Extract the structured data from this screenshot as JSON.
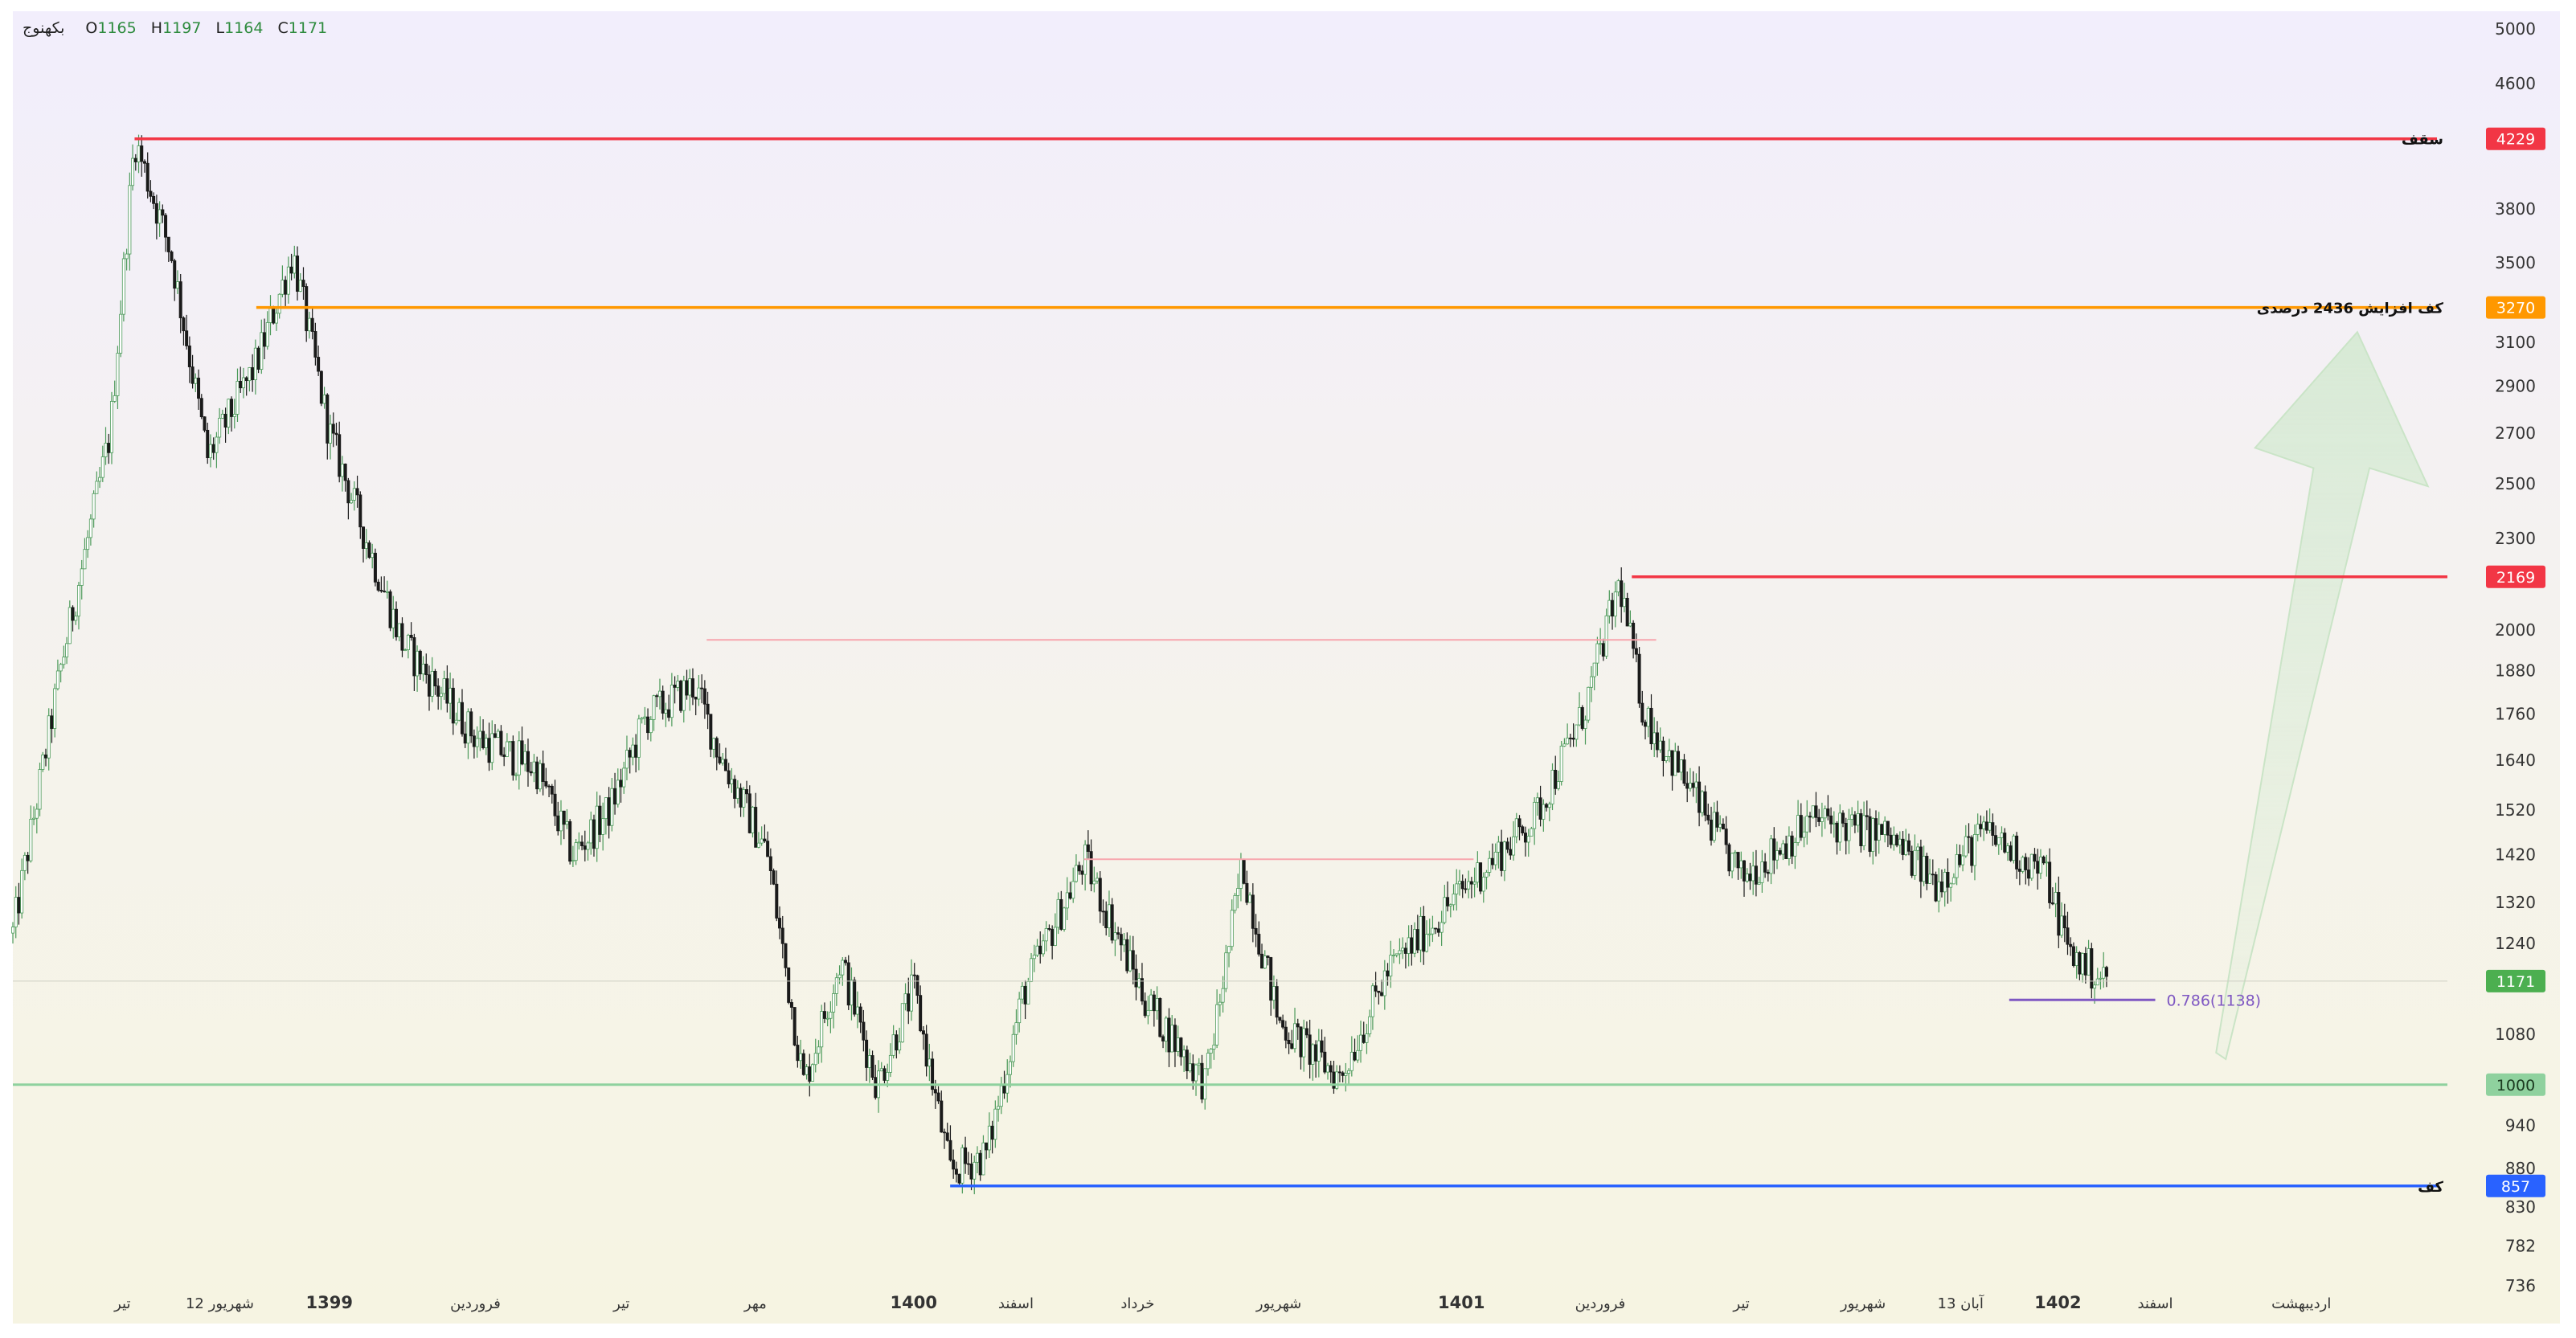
{
  "chart_data": {
    "type": "candlestick",
    "symbol": "بکهنوج",
    "ohlc_legend": {
      "O_label": "O",
      "O": "1165",
      "H_label": "H",
      "H": "1197",
      "L_label": "L",
      "L": "1164",
      "C_label": "C",
      "C": "1171"
    },
    "y_scale": "log",
    "y_range": [
      736,
      5000
    ],
    "y_ticks": [
      5000,
      4600,
      4229,
      3800,
      3500,
      3270,
      3100,
      2900,
      2700,
      2500,
      2300,
      2169,
      2000,
      1880,
      1760,
      1640,
      1520,
      1420,
      1320,
      1240,
      1171,
      1080,
      1000,
      940,
      880,
      857,
      830,
      782,
      736
    ],
    "x_labels": [
      "تیر",
      "12 شهریور",
      "1399",
      "فروردین",
      "تیر",
      "مهر",
      "1400",
      "اسفند",
      "خرداد",
      "شهریور",
      "1401",
      "فروردین",
      "تیر",
      "شهریور",
      "13 آبان",
      "1402",
      "اسفند",
      "اردیبهشت"
    ],
    "x_labels_bold": [
      "1399",
      "1400",
      "1401",
      "1402"
    ],
    "price_path": [
      {
        "x": 0.0,
        "y": 1260
      },
      {
        "x": 0.02,
        "y": 1900
      },
      {
        "x": 0.04,
        "y": 2700
      },
      {
        "x": 0.05,
        "y": 4229
      },
      {
        "x": 0.065,
        "y": 3550
      },
      {
        "x": 0.08,
        "y": 2600
      },
      {
        "x": 0.1,
        "y": 3000
      },
      {
        "x": 0.115,
        "y": 3550
      },
      {
        "x": 0.13,
        "y": 2700
      },
      {
        "x": 0.16,
        "y": 1960
      },
      {
        "x": 0.19,
        "y": 1700
      },
      {
        "x": 0.215,
        "y": 1620
      },
      {
        "x": 0.23,
        "y": 1420
      },
      {
        "x": 0.245,
        "y": 1520
      },
      {
        "x": 0.26,
        "y": 1750
      },
      {
        "x": 0.28,
        "y": 1840
      },
      {
        "x": 0.29,
        "y": 1660
      },
      {
        "x": 0.31,
        "y": 1420
      },
      {
        "x": 0.325,
        "y": 1000
      },
      {
        "x": 0.34,
        "y": 1210
      },
      {
        "x": 0.355,
        "y": 1000
      },
      {
        "x": 0.37,
        "y": 1160
      },
      {
        "x": 0.385,
        "y": 875
      },
      {
        "x": 0.4,
        "y": 900
      },
      {
        "x": 0.415,
        "y": 1150
      },
      {
        "x": 0.44,
        "y": 1410
      },
      {
        "x": 0.465,
        "y": 1140
      },
      {
        "x": 0.49,
        "y": 1000
      },
      {
        "x": 0.505,
        "y": 1400
      },
      {
        "x": 0.52,
        "y": 1100
      },
      {
        "x": 0.545,
        "y": 1010
      },
      {
        "x": 0.565,
        "y": 1190
      },
      {
        "x": 0.6,
        "y": 1370
      },
      {
        "x": 0.625,
        "y": 1500
      },
      {
        "x": 0.645,
        "y": 1760
      },
      {
        "x": 0.66,
        "y": 2150
      },
      {
        "x": 0.67,
        "y": 1760
      },
      {
        "x": 0.69,
        "y": 1560
      },
      {
        "x": 0.71,
        "y": 1370
      },
      {
        "x": 0.74,
        "y": 1500
      },
      {
        "x": 0.77,
        "y": 1460
      },
      {
        "x": 0.79,
        "y": 1360
      },
      {
        "x": 0.81,
        "y": 1470
      },
      {
        "x": 0.835,
        "y": 1380
      },
      {
        "x": 0.845,
        "y": 1220
      },
      {
        "x": 0.86,
        "y": 1171
      }
    ],
    "levels": [
      {
        "name": "سقف",
        "value": 4229,
        "label": "4229",
        "color": "#f23645",
        "x_start": 0.05
      },
      {
        "name": "کف افزایش 2436 درصدی",
        "value": 3270,
        "label": "3270",
        "color": "#ff9800",
        "x_start": 0.1
      },
      {
        "name": "",
        "value": 2169,
        "label": "2169",
        "color": "#f23645",
        "x_start": 0.665
      },
      {
        "name": "",
        "value": 1000,
        "label": "1000",
        "color": "#8fd19e",
        "x_start": 0.0
      },
      {
        "name": "کف",
        "value": 857,
        "label": "857",
        "color": "#2962ff",
        "x_start": 0.385
      }
    ],
    "thin_levels": [
      {
        "value": 1970,
        "color": "#f7a6ad",
        "x_start": 0.285,
        "x_end": 0.675
      },
      {
        "value": 1410,
        "color": "#f7a6ad",
        "x_start": 0.44,
        "x_end": 0.6
      }
    ],
    "fib": {
      "label": "0.786(1138)",
      "value": 1138,
      "color": "#7e57c2",
      "x_start": 0.82,
      "x_end": 0.88
    },
    "current_price": {
      "value": 1171,
      "label": "1171",
      "color": "#4caf50"
    },
    "arrow": {
      "direction": "up",
      "from_value": 1050,
      "to_value": 3150
    }
  }
}
